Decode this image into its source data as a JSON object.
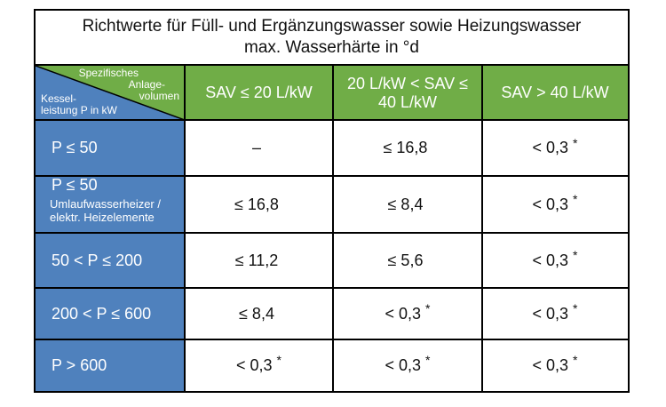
{
  "title": {
    "line1": "Richtwerte für Füll- und Ergänzungswasser sowie Heizungswasser",
    "line2": "max. Wasserhärte in °d"
  },
  "corner": {
    "top_line1": "Spezifisches",
    "top_line2": "Anlage-",
    "top_line3": "volumen",
    "bottom_line1": "Kessel-",
    "bottom_line2": "leistung P in kW"
  },
  "columns": [
    {
      "label_line1": "SAV ≤ 20 L/kW",
      "label_line2": ""
    },
    {
      "label_line1": "20 L/kW < SAV ≤",
      "label_line2": "40 L/kW"
    },
    {
      "label_line1": "SAV > 40 L/kW",
      "label_line2": ""
    }
  ],
  "rows": [
    {
      "label": "P ≤ 50",
      "note_line1": "",
      "note_line2": "",
      "values": [
        "–",
        "≤ 16,8",
        "< 0,3"
      ],
      "stars": [
        "",
        "",
        "*"
      ]
    },
    {
      "label": "P ≤ 50",
      "note_line1": "Umlaufwasserheizer /",
      "note_line2": "elektr. Heizelemente",
      "values": [
        "≤ 16,8",
        "≤ 8,4",
        "< 0,3"
      ],
      "stars": [
        "",
        "",
        "*"
      ]
    },
    {
      "label": "50 < P ≤ 200",
      "note_line1": "",
      "note_line2": "",
      "values": [
        "≤ 11,2",
        "≤ 5,6",
        "< 0,3"
      ],
      "stars": [
        "",
        "",
        "*"
      ]
    },
    {
      "label": "200 < P ≤ 600",
      "note_line1": "",
      "note_line2": "",
      "values": [
        "≤ 8,4",
        "< 0,3",
        "< 0,3"
      ],
      "stars": [
        "",
        "*",
        "*"
      ]
    },
    {
      "label": "P > 600",
      "note_line1": "",
      "note_line2": "",
      "values": [
        "< 0,3",
        "< 0,3",
        "< 0,3"
      ],
      "stars": [
        "*",
        "*",
        "*"
      ]
    }
  ]
}
